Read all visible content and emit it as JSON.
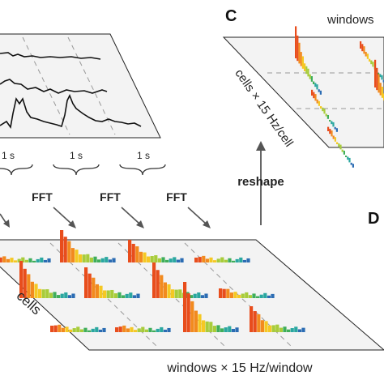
{
  "panels": {
    "c_letter": "C",
    "d_letter": "D"
  },
  "labels": {
    "one_sec": "1 s",
    "fft": "FFT",
    "reshape": "reshape",
    "cells": "cells",
    "windows_x": "windows × 15 Hz/window",
    "cells_x": "cells × 15 Hz/cell",
    "windows_top": "windows"
  },
  "colors": {
    "plane_fill": "#f3f3f3",
    "plane_edge": "#222222",
    "trace": "#111111",
    "divider": "#888888",
    "arrow": "#555555",
    "spectrum_gradient": [
      "#e84d1c",
      "#f28a1e",
      "#f5c823",
      "#a8cc3a",
      "#3fae5a",
      "#2aa7a0",
      "#2b6cb3"
    ]
  }
}
